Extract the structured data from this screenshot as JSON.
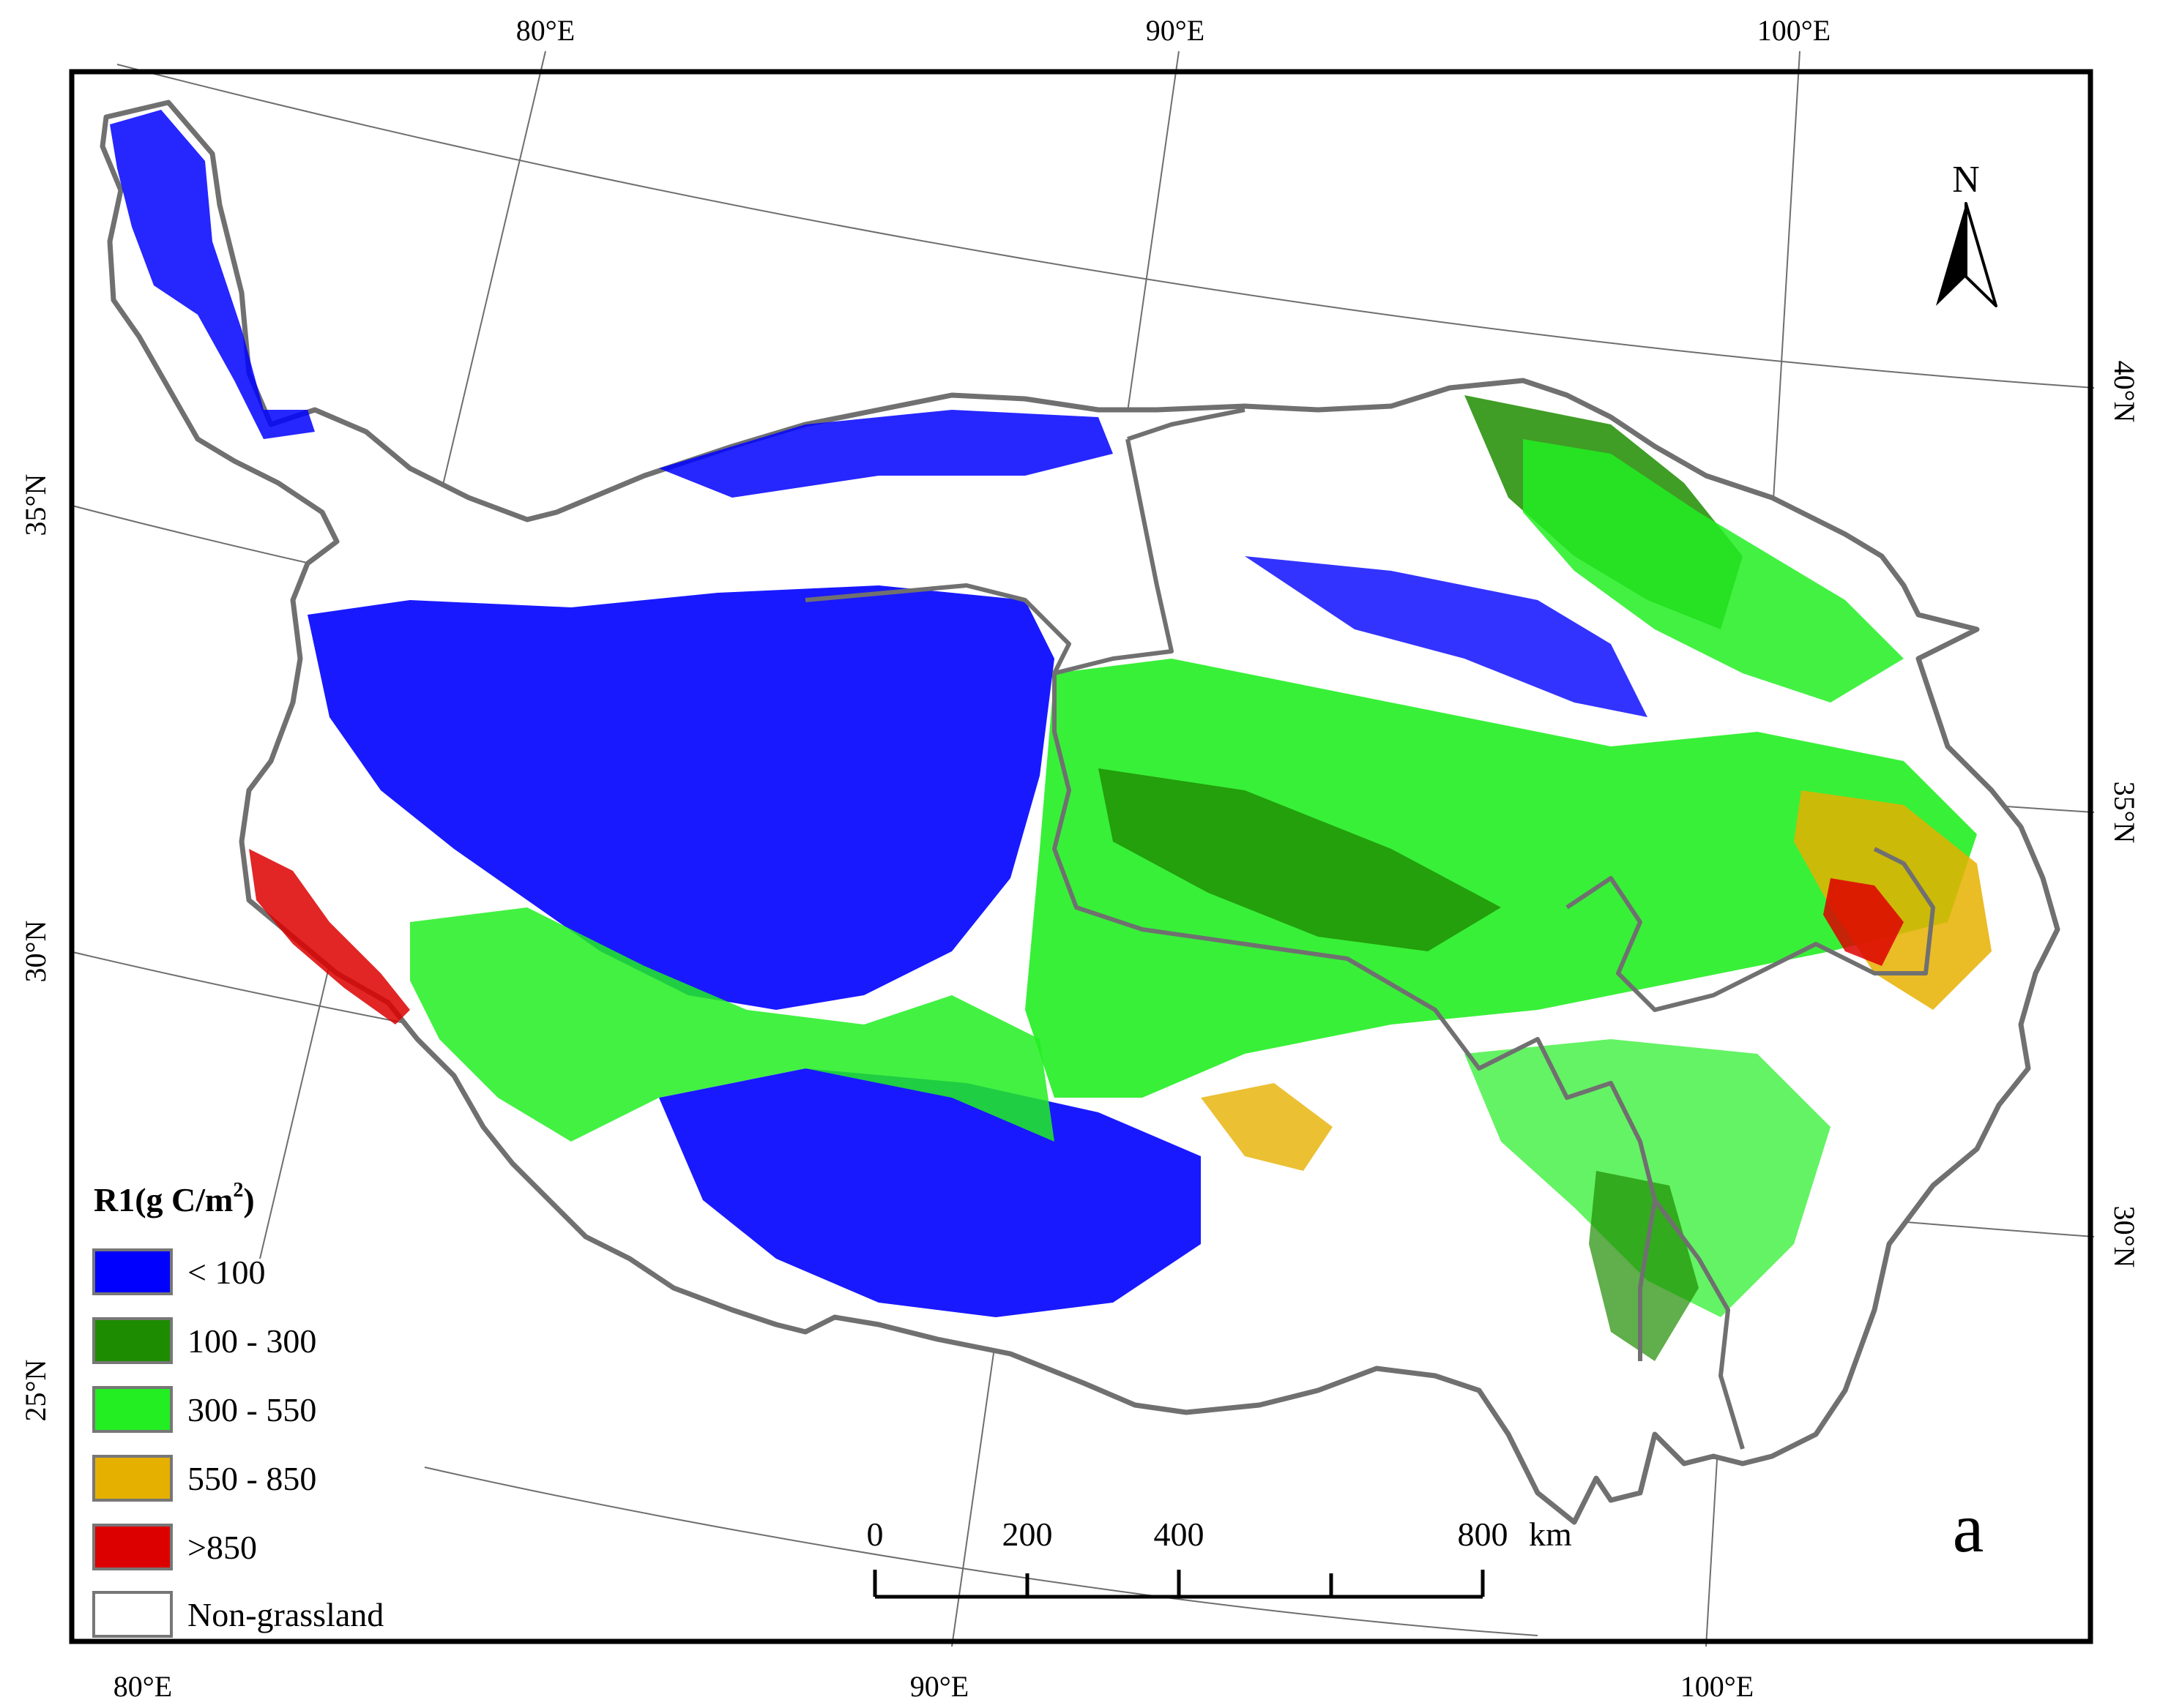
{
  "map": {
    "top_longitudes": [
      "80°E",
      "90°E",
      "100°E"
    ],
    "bottom_longitudes": [
      "80°E",
      "90°E",
      "100°E"
    ],
    "left_latitudes": [
      "35°N",
      "30°N",
      "25°N"
    ],
    "right_latitudes": [
      "40°N",
      "35°N",
      "30°N"
    ],
    "north_label": "N",
    "panel_label": "a"
  },
  "legend": {
    "title_main": "R1(g C/m",
    "title_sup": "2",
    "title_end": ")",
    "items": [
      {
        "label": "< 100",
        "color": "#0000ff"
      },
      {
        "label": "100 - 300",
        "color": "#1e8c00"
      },
      {
        "label": "300 - 550",
        "color": "#22ee22"
      },
      {
        "label": "550 - 850",
        "color": "#e6b000"
      },
      {
        "label": ">850",
        "color": "#dd0000"
      },
      {
        "label": "Non-grassland",
        "color": "#ffffff"
      }
    ]
  },
  "scalebar": {
    "ticks": [
      "0",
      "200",
      "400",
      "800"
    ],
    "unit": "km"
  }
}
